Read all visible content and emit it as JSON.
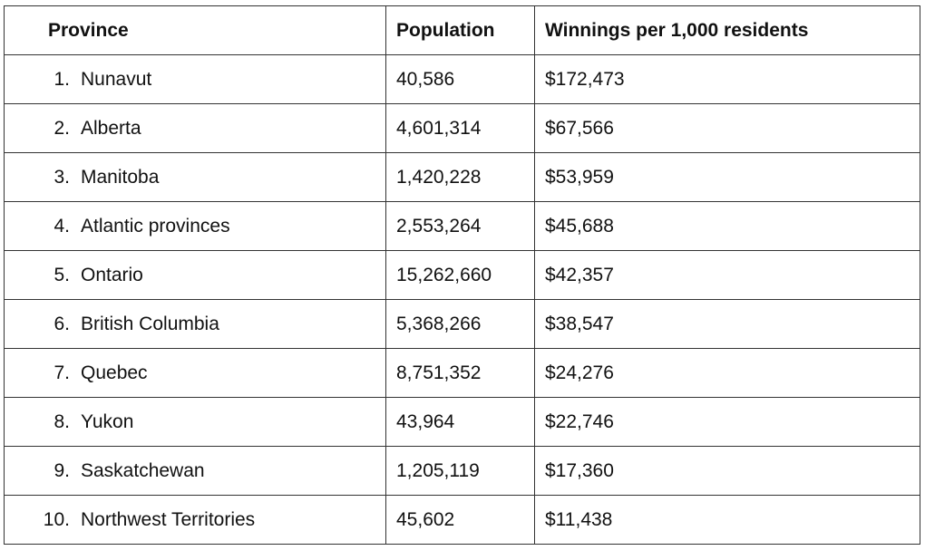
{
  "table": {
    "header": [
      "Province",
      "Population",
      "Winnings per 1,000 residents"
    ],
    "rows": [
      {
        "rank": "1.",
        "province": "Nunavut",
        "population": "40,586",
        "winnings": "$172,473"
      },
      {
        "rank": "2.",
        "province": "Alberta",
        "population": "4,601,314",
        "winnings": "$67,566"
      },
      {
        "rank": "3.",
        "province": "Manitoba",
        "population": "1,420,228",
        "winnings": "$53,959"
      },
      {
        "rank": "4.",
        "province": "Atlantic provinces",
        "population": "2,553,264",
        "winnings": "$45,688"
      },
      {
        "rank": "5.",
        "province": "Ontario",
        "population": "15,262,660",
        "winnings": "$42,357"
      },
      {
        "rank": "6.",
        "province": "British Columbia",
        "population": "5,368,266",
        "winnings": "$38,547"
      },
      {
        "rank": "7.",
        "province": "Quebec",
        "population": "8,751,352",
        "winnings": "$24,276"
      },
      {
        "rank": "8.",
        "province": "Yukon",
        "population": "43,964",
        "winnings": "$22,746"
      },
      {
        "rank": "9.",
        "province": "Saskatchewan",
        "population": "1,205,119",
        "winnings": "$17,360"
      },
      {
        "rank": "10.",
        "province": "Northwest Territories",
        "population": "45,602",
        "winnings": "$11,438"
      }
    ]
  }
}
